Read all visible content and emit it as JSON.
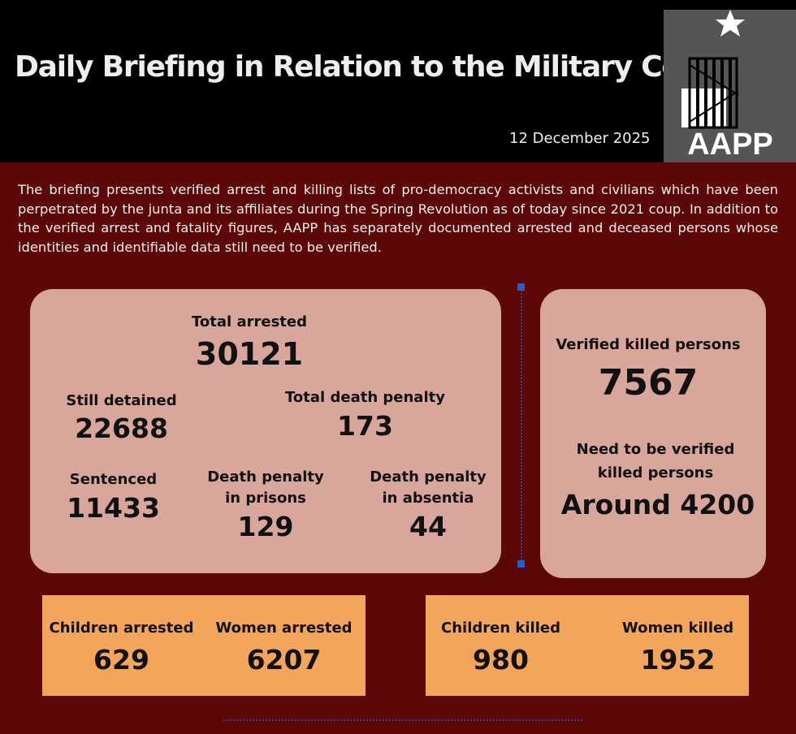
{
  "header": {
    "title": "Daily Briefing in Relation to the Military Coup",
    "date": "12 December 2025",
    "logo_text": "AAPP"
  },
  "intro": "The briefing presents verified arrest and killing lists of pro-democracy activists and civilians which have been perpetrated by the junta and its affiliates during the Spring Revolution as of today since 2021 coup. In addition to the verified arrest and fatality figures, AAPP has separately documented arrested and deceased persons whose identities and identifiable data still need to be verified.",
  "arrests": {
    "total": {
      "label": "Total arrested",
      "value": "30121"
    },
    "detained": {
      "label": "Still detained",
      "value": "22688"
    },
    "death_penalty": {
      "label": "Total death penalty",
      "value": "173"
    },
    "sentenced": {
      "label": "Sentenced",
      "value": "11433"
    },
    "dp_prisons": {
      "label1": "Death penalty",
      "label2": "in prisons",
      "value": "129"
    },
    "dp_absentia": {
      "label1": "Death penalty",
      "label2": "in absentia",
      "value": "44"
    }
  },
  "killed": {
    "verified": {
      "label": "Verified killed persons",
      "value": "7567"
    },
    "unverified": {
      "label1": "Need to be verified",
      "label2": "killed persons",
      "value": "Around 4200"
    }
  },
  "arrest_breakdown": {
    "children": {
      "label": "Children arrested",
      "value": "629"
    },
    "women": {
      "label": "Women arrested",
      "value": "6207"
    }
  },
  "killed_breakdown": {
    "children": {
      "label": "Children killed",
      "value": "980"
    },
    "women": {
      "label": "Women killed",
      "value": "1952"
    }
  },
  "colors": {
    "background": "#5c0808",
    "card": "#d9a69c",
    "highlight": "#f4a55c",
    "header": "#000000"
  }
}
